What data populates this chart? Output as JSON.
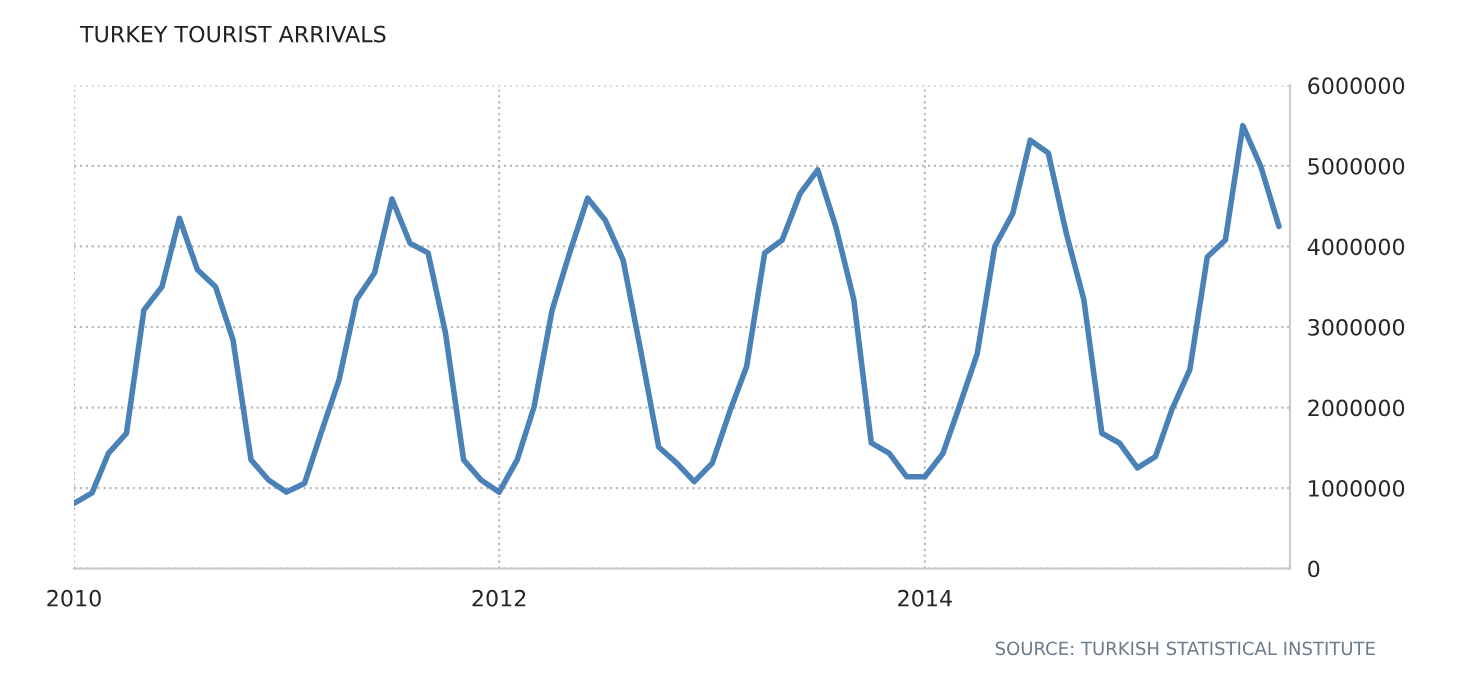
{
  "chart_data": {
    "type": "line",
    "title": "TURKEY TOURIST ARRIVALS",
    "x": [
      "2010-01",
      "2010-02",
      "2010-03",
      "2010-04",
      "2010-05",
      "2010-06",
      "2010-07",
      "2010-08",
      "2010-09",
      "2010-10",
      "2010-11",
      "2010-12",
      "2011-01",
      "2011-02",
      "2011-03",
      "2011-04",
      "2011-05",
      "2011-06",
      "2011-07",
      "2011-08",
      "2011-09",
      "2011-10",
      "2011-11",
      "2011-12",
      "2012-01",
      "2012-02",
      "2012-03",
      "2012-04",
      "2012-05",
      "2012-06",
      "2012-07",
      "2012-08",
      "2012-09",
      "2012-10",
      "2012-11",
      "2012-12",
      "2013-01",
      "2013-02",
      "2013-03",
      "2013-04",
      "2013-05",
      "2013-06",
      "2013-07",
      "2013-08",
      "2013-09",
      "2013-10",
      "2013-11",
      "2013-12",
      "2014-01",
      "2014-02",
      "2014-03",
      "2014-04",
      "2014-05",
      "2014-06",
      "2014-07",
      "2014-08",
      "2014-09",
      "2014-10",
      "2014-11",
      "2014-12",
      "2015-01",
      "2015-02",
      "2015-03",
      "2015-04",
      "2015-05",
      "2015-06",
      "2015-07",
      "2015-08",
      "2015-09"
    ],
    "series": [
      {
        "color": "#4a82b8",
        "values": [
          810000,
          940000,
          1430000,
          1680000,
          3210000,
          3500000,
          4350000,
          3710000,
          3500000,
          2840000,
          1350000,
          1100000,
          950000,
          1060000,
          1680000,
          2340000,
          3340000,
          3670000,
          4590000,
          4040000,
          3920000,
          2920000,
          1350000,
          1100000,
          950000,
          1350000,
          2010000,
          3210000,
          3920000,
          4600000,
          4330000,
          3830000,
          2670000,
          1510000,
          1310000,
          1080000,
          1310000,
          1970000,
          2510000,
          3920000,
          4080000,
          4660000,
          4950000,
          4250000,
          3340000,
          1560000,
          1430000,
          1140000,
          1140000,
          1430000,
          2010000,
          2670000,
          4000000,
          4410000,
          5320000,
          5160000,
          4160000,
          3340000,
          1680000,
          1560000,
          1250000,
          1390000,
          1970000,
          2470000,
          3870000,
          4080000,
          5500000,
          4990000,
          4250000
        ]
      }
    ],
    "xlim": [
      "2010-01-01",
      "2015-09-20"
    ],
    "xticks": [
      {
        "value": "2010-01-01",
        "label": "2010"
      },
      {
        "value": "2012-01-01",
        "label": "2012"
      },
      {
        "value": "2014-01-01",
        "label": "2014"
      }
    ],
    "ylim": [
      0,
      6000000
    ],
    "yticks": [
      0,
      1000000,
      2000000,
      3000000,
      4000000,
      5000000,
      6000000
    ],
    "grid": true,
    "marker": "none",
    "line_style": "solid",
    "annotations": [
      "SOURCE: TURKISH STATISTICAL INSTITUTE"
    ]
  }
}
